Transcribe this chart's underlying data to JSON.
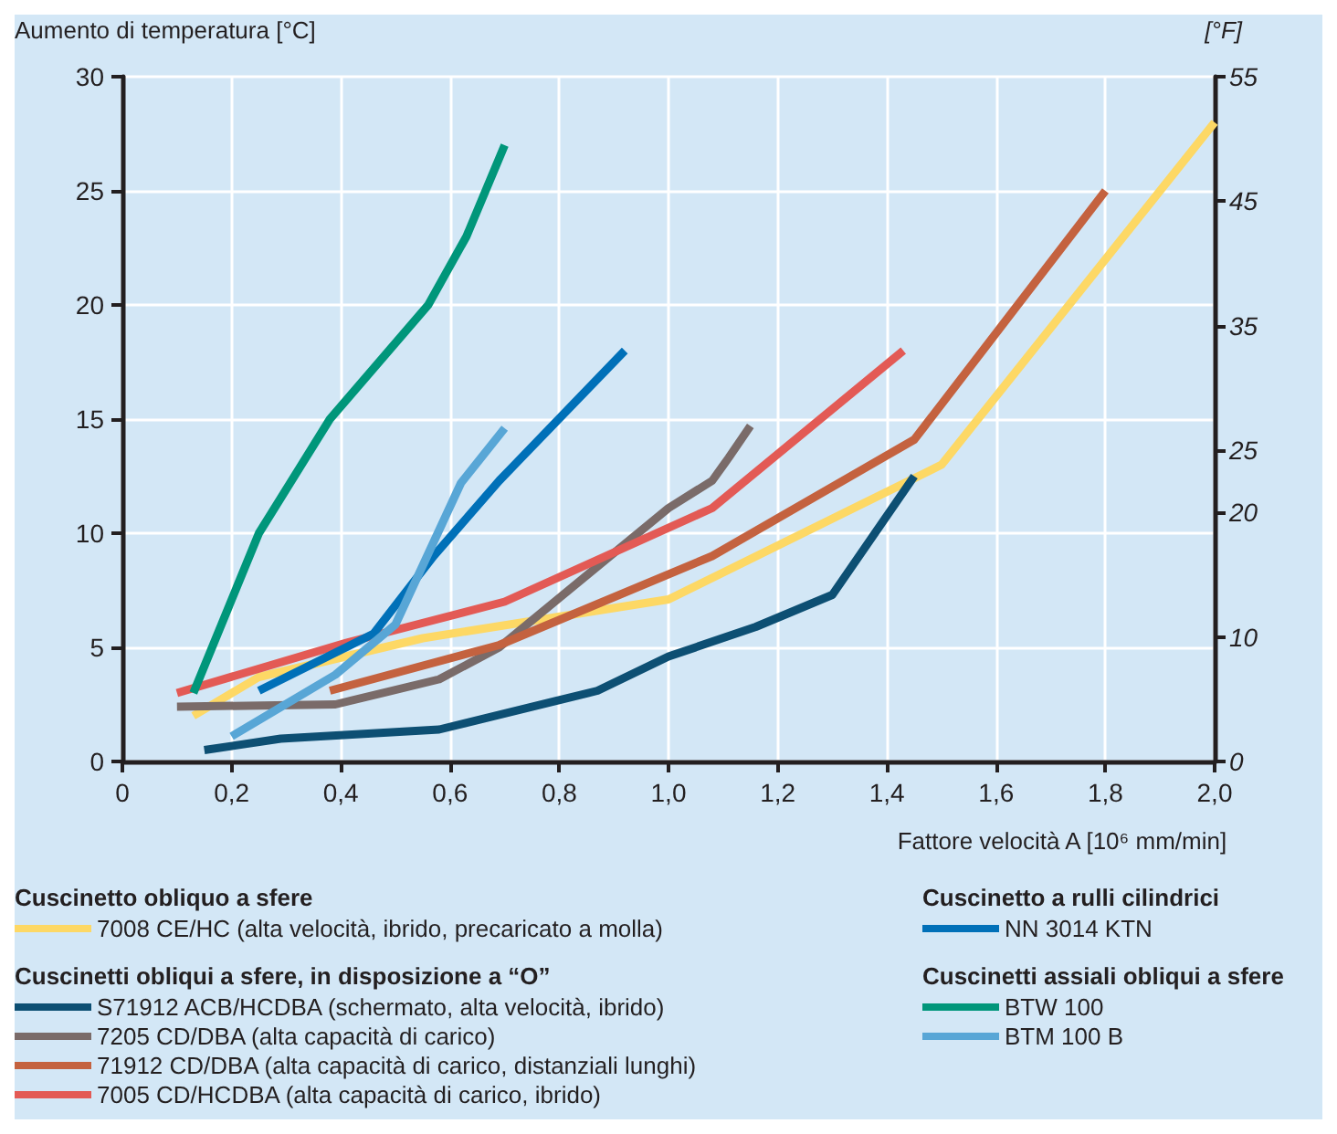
{
  "chart_data": {
    "type": "line",
    "xlabel": "Fattore velocità A [10⁶ mm/min]",
    "ylabel": "Aumento di temperatura [°C]",
    "y2label": "[°F]",
    "annotations": [
      "Cuscinetto obliquo a sfere",
      "Cuscinetti obliqui a sfere, in disposizione a “O”",
      "Cuscinetto a rulli cilindrici",
      "Cuscinetti assiali obliqui a sfere"
    ],
    "xlim": [
      0,
      2
    ],
    "xticks": [
      0,
      {
        "value": 0.2,
        "label": "0,2"
      },
      {
        "value": 0.4,
        "label": "0,4"
      },
      {
        "value": 0.6,
        "label": "0,6"
      },
      {
        "value": 0.8,
        "label": "0,8"
      },
      {
        "value": 1.0,
        "label": "1,0"
      },
      {
        "value": 1.2,
        "label": "1,2"
      },
      {
        "value": 1.4,
        "label": "1,4"
      },
      {
        "value": 1.6,
        "label": "1,6"
      },
      {
        "value": 1.8,
        "label": "1,8"
      },
      {
        "value": 2.0,
        "label": "2,0"
      }
    ],
    "ylim": [
      0,
      30
    ],
    "yticks": [
      0,
      5,
      10,
      15,
      20,
      25,
      30
    ],
    "y2lim": [
      0,
      55
    ],
    "y2ticks": [
      0,
      10,
      20,
      25,
      35,
      45,
      55
    ],
    "grid": true,
    "legend": "bottom",
    "marker": "none",
    "line_style": "solid",
    "series": [
      {
        "name": "7008 CE/HC (alta velocità, ibrido, precaricato a molla)",
        "color": "#fdd865",
        "x": [
          0.13,
          0.25,
          0.55,
          1.0,
          1.5,
          2.0
        ],
        "values": [
          2,
          3.7,
          5.4,
          7.1,
          13,
          28
        ]
      },
      {
        "name": "S71912 ACB/HCDBA (schermato, alta velocità, ibrido)",
        "color": "#0d4f73",
        "x": [
          0.15,
          0.29,
          0.58,
          0.87,
          1.0,
          1.16,
          1.3,
          1.45
        ],
        "values": [
          0.5,
          1,
          1.4,
          3.1,
          4.6,
          5.9,
          7.3,
          12.5
        ]
      },
      {
        "name": "7205 CD/DBA (alta capacità di carico)",
        "color": "#7a6b69",
        "x": [
          0.1,
          0.39,
          0.58,
          0.69,
          1.0,
          1.08,
          1.11,
          1.15
        ],
        "values": [
          2.4,
          2.5,
          3.6,
          5,
          11.1,
          12.3,
          13.3,
          14.7
        ]
      },
      {
        "name": "71912 CD/DBA (alta capacità di carico, distanziali lunghi)",
        "color": "#c4623f",
        "x": [
          0.38,
          0.69,
          1.08,
          1.45,
          1.8
        ],
        "values": [
          3.1,
          5.1,
          9,
          14.1,
          25
        ]
      },
      {
        "name": "7005 CD/HCDBA (alta capacità di carico, ibrido)",
        "color": "#e35a55",
        "x": [
          0.1,
          0.41,
          0.7,
          1.08,
          1.43
        ],
        "values": [
          3,
          5.2,
          7,
          11.1,
          18
        ]
      },
      {
        "name": "NN 3014 KTN",
        "color": "#0070b8",
        "x": [
          0.25,
          0.46,
          0.57,
          0.69,
          0.92
        ],
        "values": [
          3.1,
          5.6,
          9,
          12.3,
          18
        ]
      },
      {
        "name": "BTW 100",
        "color": "#00967a",
        "x": [
          0.13,
          0.25,
          0.38,
          0.56,
          0.63,
          0.7
        ],
        "values": [
          3,
          10,
          15,
          20,
          23,
          27
        ]
      },
      {
        "name": "BTM 100 B",
        "color": "#58a6d6",
        "x": [
          0.2,
          0.39,
          0.5,
          0.62,
          0.7
        ],
        "values": [
          1.1,
          3.8,
          6,
          12.2,
          14.6
        ]
      }
    ]
  }
}
